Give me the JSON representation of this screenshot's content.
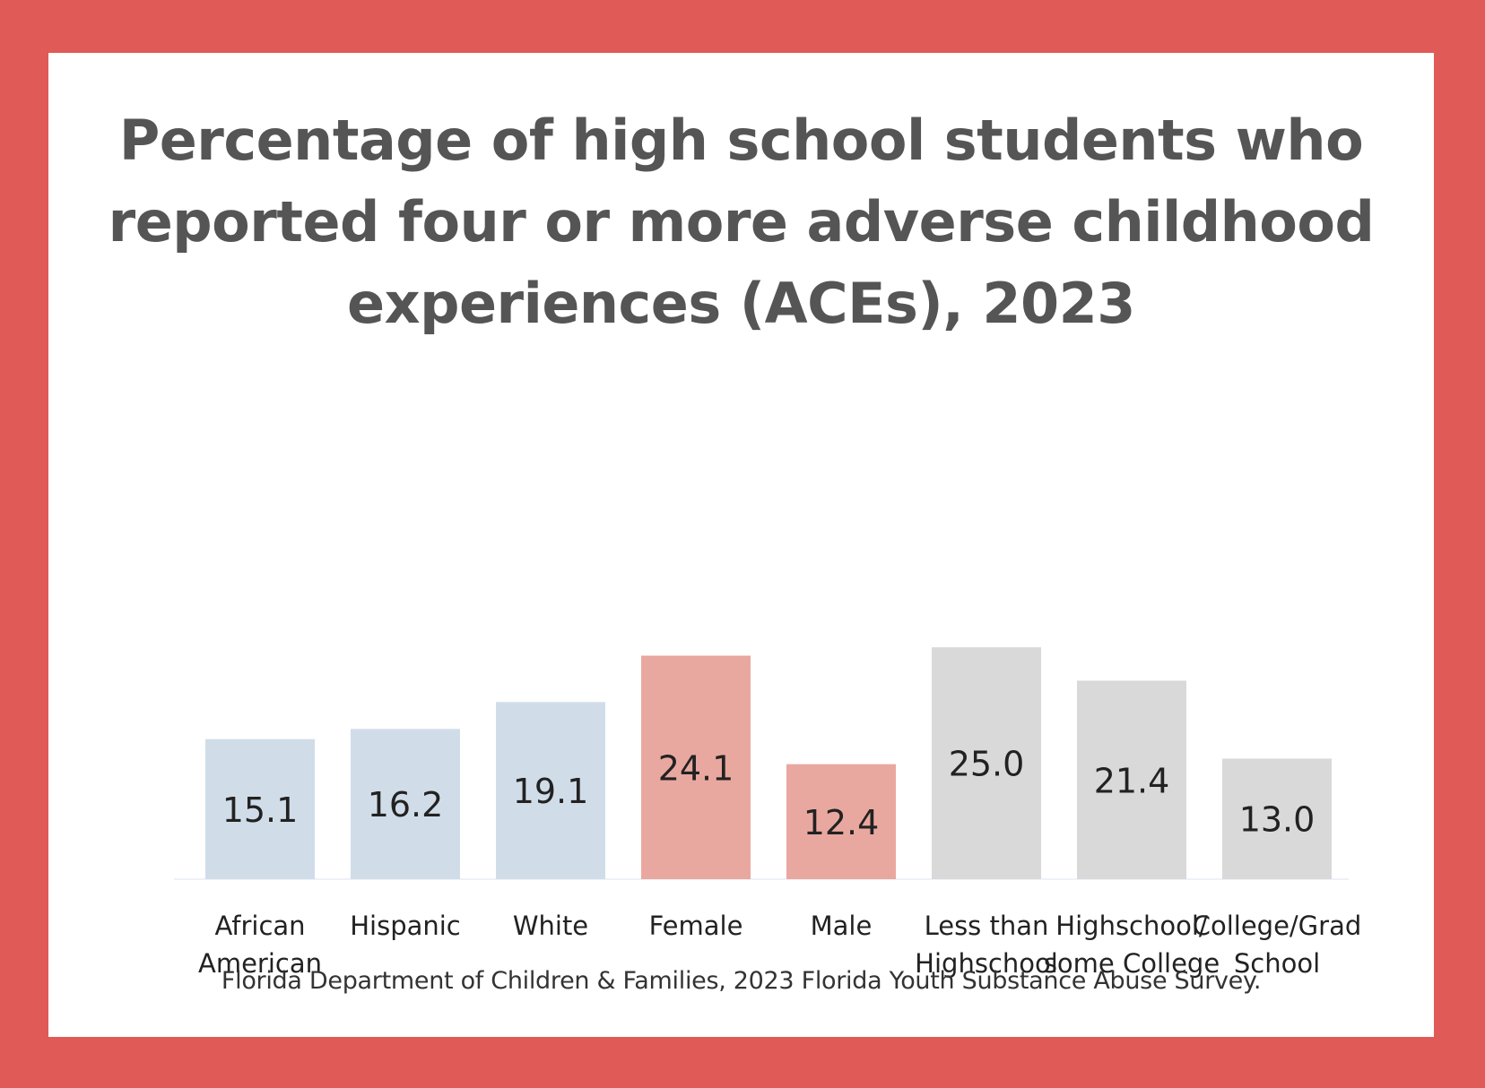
{
  "chart_data": {
    "type": "bar",
    "title_lines": [
      "Percentage of high school students who",
      "reported four or more adverse childhood",
      "experiences (ACEs), 2023"
    ],
    "categories": [
      [
        "African",
        "American"
      ],
      [
        "Hispanic"
      ],
      [
        "White"
      ],
      [
        "Female"
      ],
      [
        "Male"
      ],
      [
        "Less than",
        "Highschool"
      ],
      [
        "Highschool/",
        "some College"
      ],
      [
        "College/Grad",
        "School"
      ]
    ],
    "values": [
      15.1,
      16.2,
      19.1,
      24.1,
      12.4,
      25.0,
      21.4,
      13.0
    ],
    "value_labels": [
      "15.1",
      "16.2",
      "19.1",
      "24.1",
      "12.4",
      "25.0",
      "21.4",
      "13.0"
    ],
    "colors": [
      "#d0dde9",
      "#d0dde9",
      "#d0dde9",
      "#e9a89f",
      "#e9a89f",
      "#d9d9d9",
      "#d9d9d9",
      "#d9d9d9"
    ],
    "ylim": [
      0,
      40
    ],
    "grid": false,
    "source": "Florida Department of Children & Families, 2023 Florida Youth Substance Abuse Survey."
  }
}
